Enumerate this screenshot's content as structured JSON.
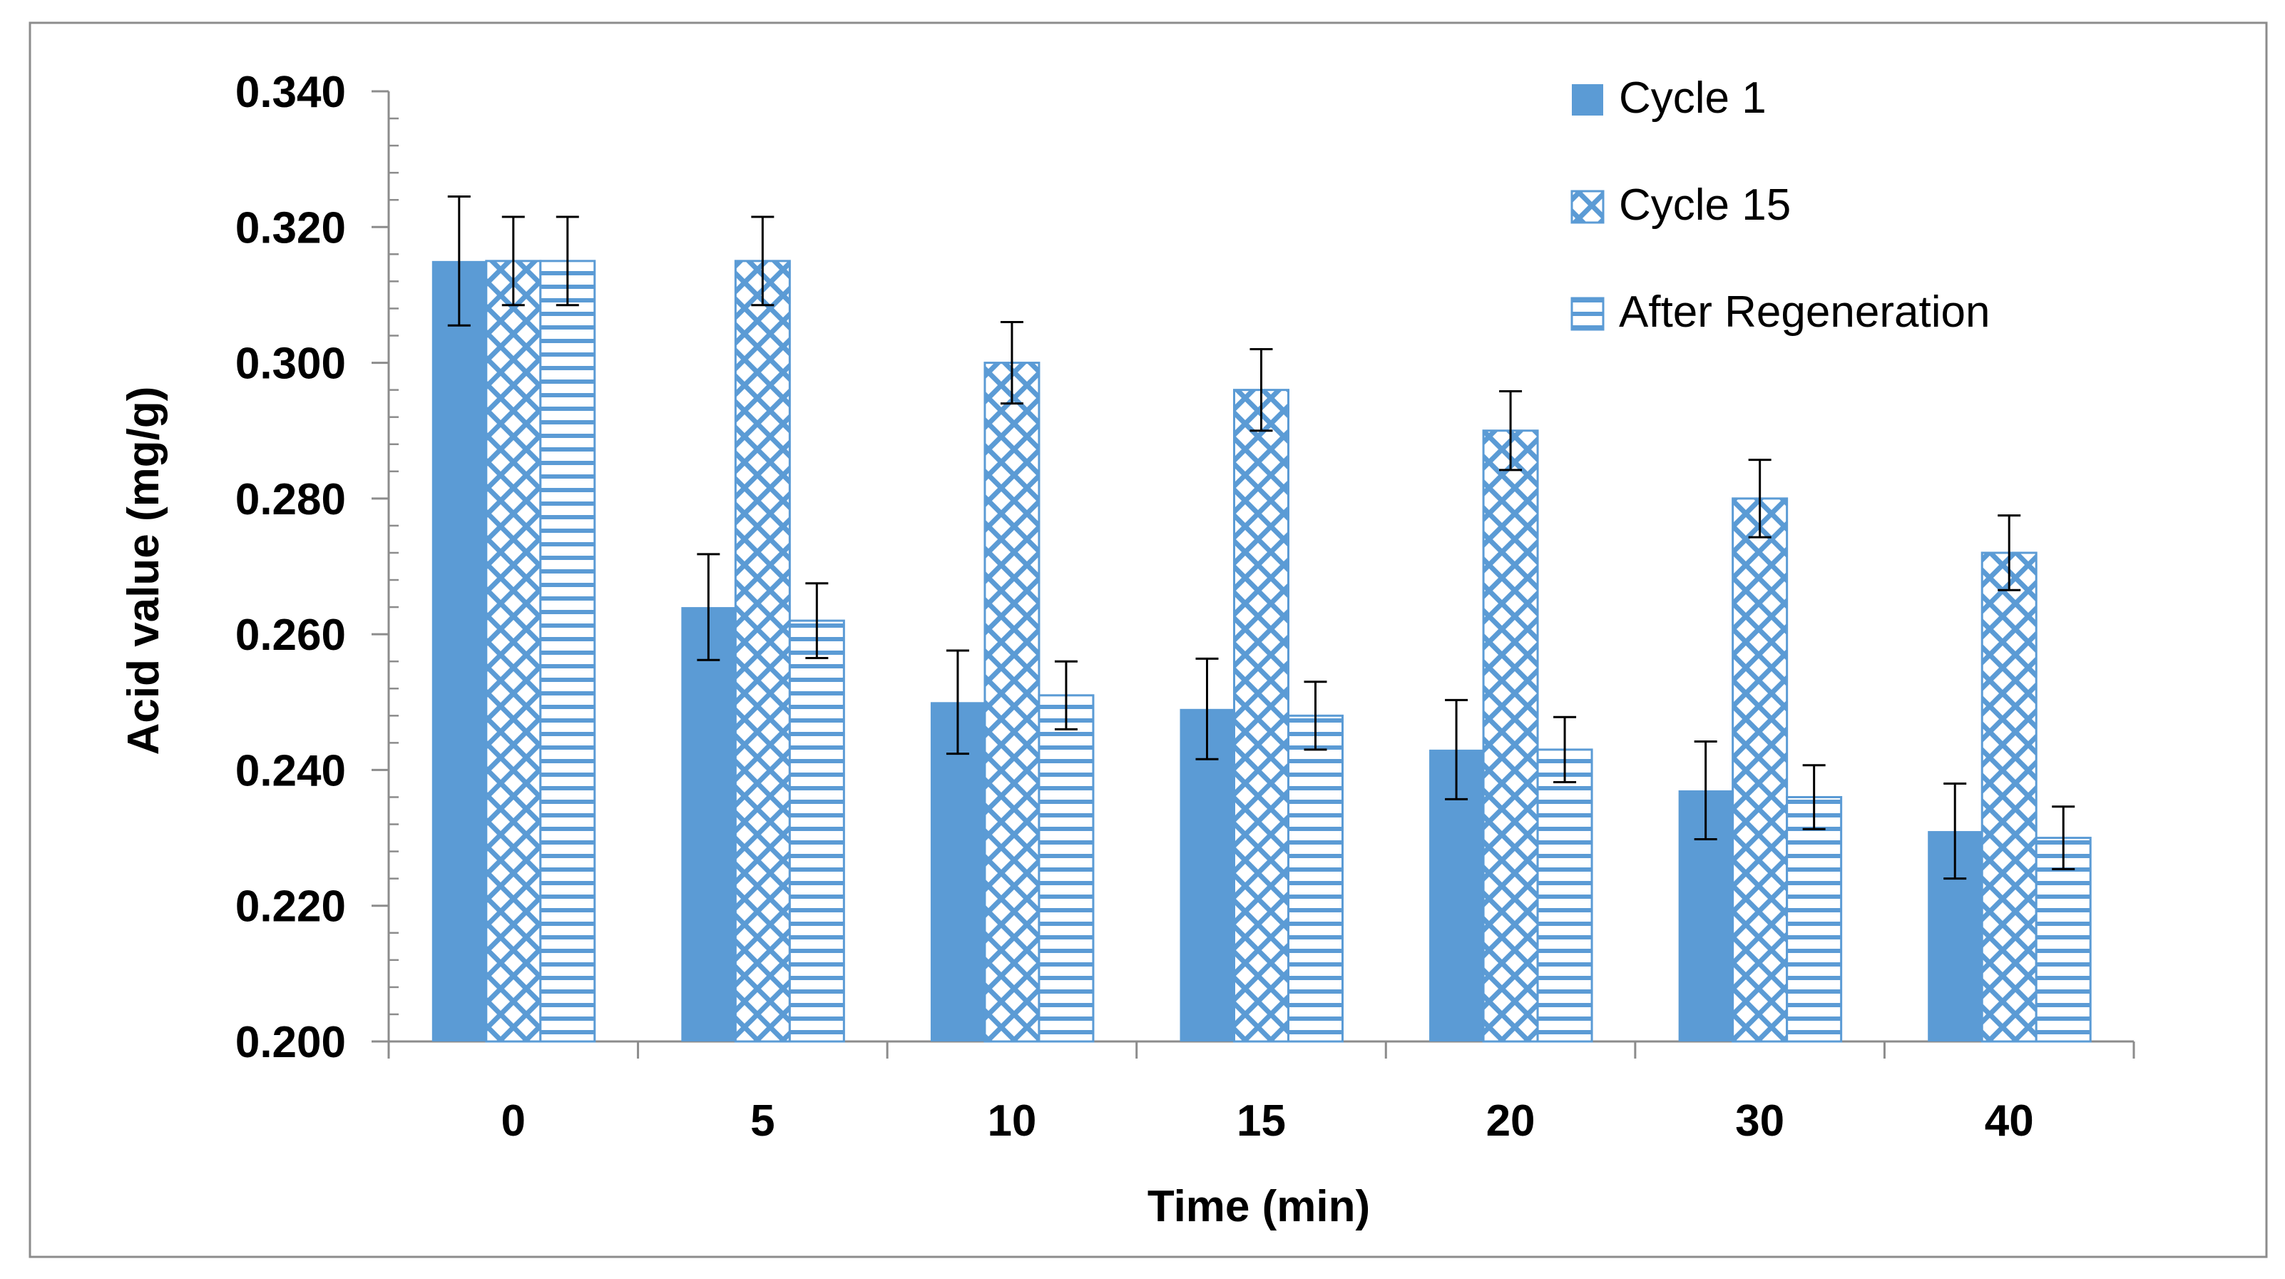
{
  "chart_data": {
    "type": "bar",
    "title": "",
    "xlabel": "Time (min)",
    "ylabel": "Acid value (mg/g)",
    "categories": [
      "0",
      "5",
      "10",
      "15",
      "20",
      "30",
      "40"
    ],
    "ylim": [
      0.2,
      0.34
    ],
    "yticks": [
      "0.200",
      "0.220",
      "0.240",
      "0.260",
      "0.280",
      "0.300",
      "0.320",
      "0.340"
    ],
    "series": [
      {
        "name": "Cycle 1",
        "pattern": "solid",
        "values": [
          0.315,
          0.264,
          0.25,
          0.249,
          0.243,
          0.237,
          0.231
        ],
        "errors": [
          0.0095,
          0.0078,
          0.0076,
          0.0074,
          0.0073,
          0.0072,
          0.007
        ]
      },
      {
        "name": "Cycle 15",
        "pattern": "diamond-hatch",
        "values": [
          0.315,
          0.315,
          0.3,
          0.296,
          0.29,
          0.28,
          0.272
        ],
        "errors": [
          0.0065,
          0.0065,
          0.006,
          0.006,
          0.0058,
          0.0057,
          0.0055
        ]
      },
      {
        "name": "After Regeneration",
        "pattern": "horizontal-lines",
        "values": [
          0.315,
          0.262,
          0.251,
          0.248,
          0.243,
          0.236,
          0.23
        ],
        "errors": [
          0.0065,
          0.0055,
          0.005,
          0.005,
          0.0048,
          0.0047,
          0.0046
        ]
      }
    ],
    "colors": {
      "bar": "#5b9bd5",
      "axis": "#8c8c8c",
      "errorbar": "#000000",
      "border": "#8c8c8c"
    },
    "legend_position": "top-right",
    "grid": false,
    "minor_ticks": true
  }
}
